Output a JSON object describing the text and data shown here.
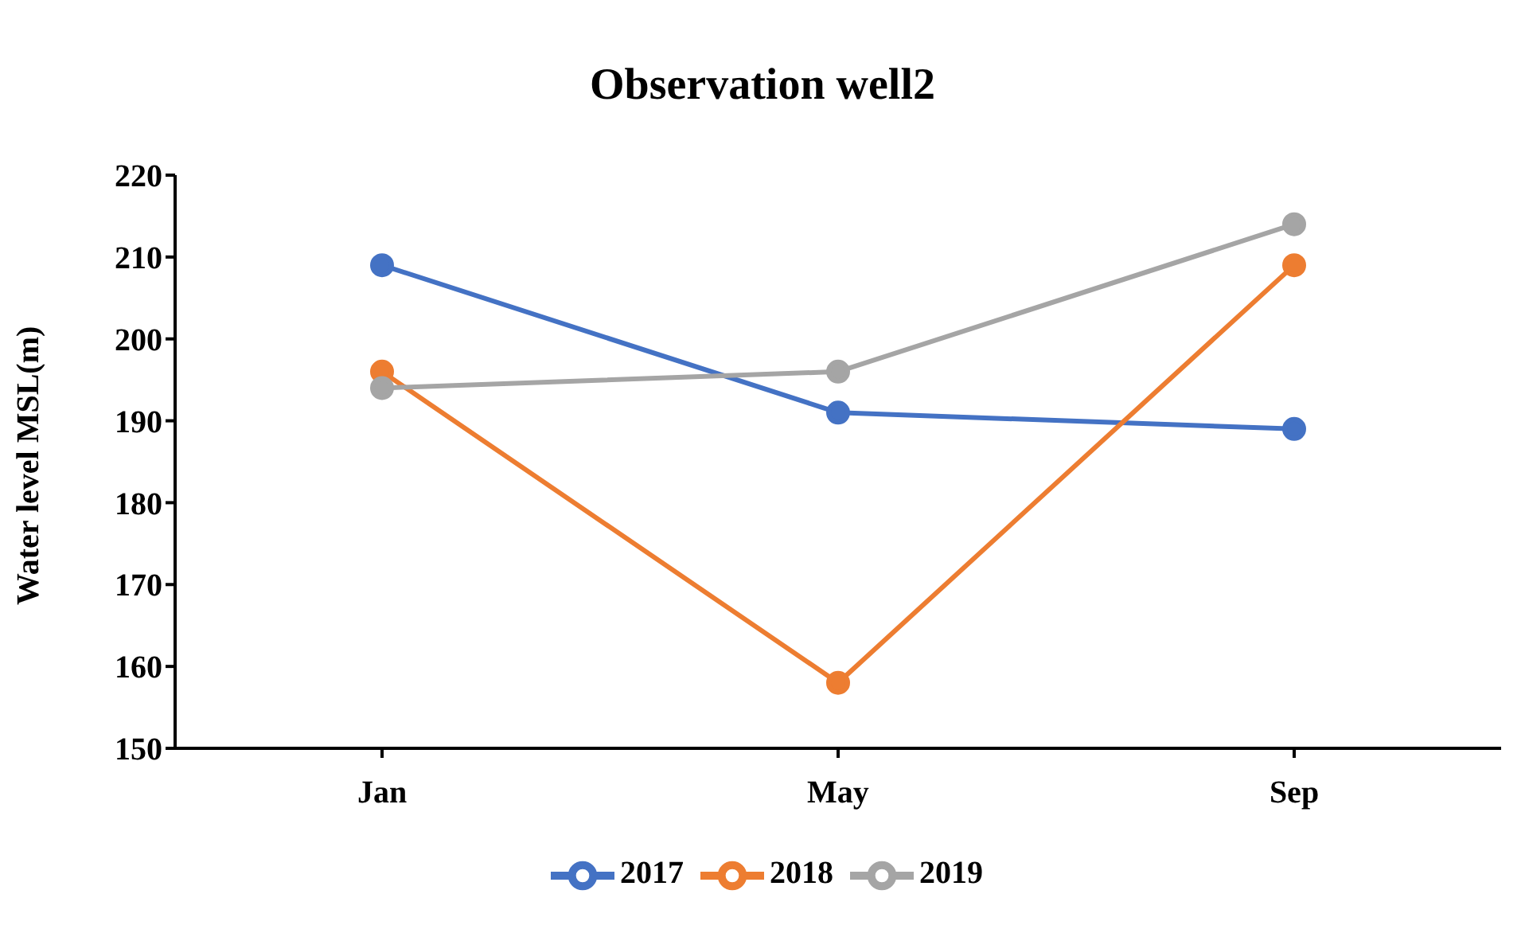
{
  "chart_data": {
    "type": "line",
    "title": "Observation well2",
    "ylabel": "Water level MSL(m)",
    "categories": [
      "Jan",
      "May",
      "Sep"
    ],
    "series": [
      {
        "name": "2017",
        "color": "#4472c4",
        "values": [
          209,
          191,
          189
        ]
      },
      {
        "name": "2018",
        "color": "#ed7d31",
        "values": [
          196,
          158,
          209
        ]
      },
      {
        "name": "2019",
        "color": "#a5a5a5",
        "values": [
          194,
          196,
          214
        ]
      }
    ],
    "ylim": [
      150,
      220
    ],
    "yticks": [
      150,
      160,
      170,
      180,
      190,
      200,
      210,
      220
    ],
    "grid": false,
    "legend": "bottom",
    "marker": "circle",
    "line_style": "solid"
  }
}
